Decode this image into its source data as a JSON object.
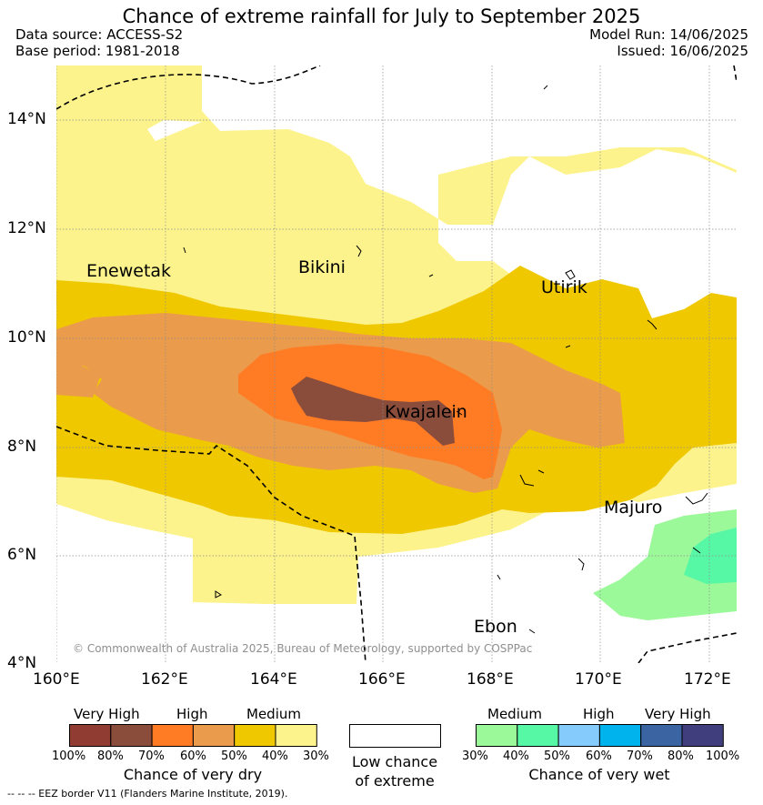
{
  "title": "Chance of extreme rainfall for July to September 2025",
  "data_source": "Data source: ACCESS-S2",
  "base_period": "Base period: 1981-2018",
  "model_run": "Model Run: 14/06/2025",
  "issued": "Issued: 16/06/2025",
  "map": {
    "lat_labels": [
      "14°N",
      "12°N",
      "10°N",
      "8°N",
      "6°N",
      "4°N"
    ],
    "lon_labels": [
      "160°E",
      "162°E",
      "164°E",
      "166°E",
      "168°E",
      "170°E",
      "172°E"
    ],
    "places": {
      "enewetak": "Enewetak",
      "bikini": "Bikini",
      "utirik": "Utirik",
      "kwajalein": "Kwajalein",
      "majuro": "Majuro",
      "ebon": "Ebon"
    },
    "copyright": "© Commonwealth of Australia 2025, Bureau of Meteorology, supported by COSPPac",
    "colors": {
      "dry_medium_light": "#fdf38c",
      "dry_medium": "#efc800",
      "dry_high_light": "#eb9b4c",
      "dry_high": "#ff7c25",
      "dry_very_high_light": "#8a4c3b",
      "wet_medium": "#9cf99a",
      "wet_medium_dark": "#57f8a5"
    }
  },
  "legend_dry": {
    "headings": [
      "Very High",
      "High",
      "Medium"
    ],
    "colors": [
      "#913c32",
      "#8a4c3b",
      "#ff7c25",
      "#eb9b4c",
      "#efc800",
      "#fdf38c"
    ],
    "ticks": [
      "100%",
      "80%",
      "70%",
      "60%",
      "50%",
      "40%",
      "30%"
    ],
    "caption": "Chance of very dry"
  },
  "legend_low": {
    "caption_line1": "Low chance",
    "caption_line2": "of extreme"
  },
  "legend_wet": {
    "headings": [
      "Medium",
      "High",
      "Very High"
    ],
    "colors": [
      "#9cf99a",
      "#57f8a5",
      "#85ccfc",
      "#00b3ed",
      "#3b64a3",
      "#403e7c"
    ],
    "ticks": [
      "30%",
      "40%",
      "50%",
      "60%",
      "70%",
      "80%",
      "100%"
    ],
    "caption": "Chance of very wet"
  },
  "footer": "--  --  -- EEZ border V11 (Flanders Marine Institute, 2019)."
}
